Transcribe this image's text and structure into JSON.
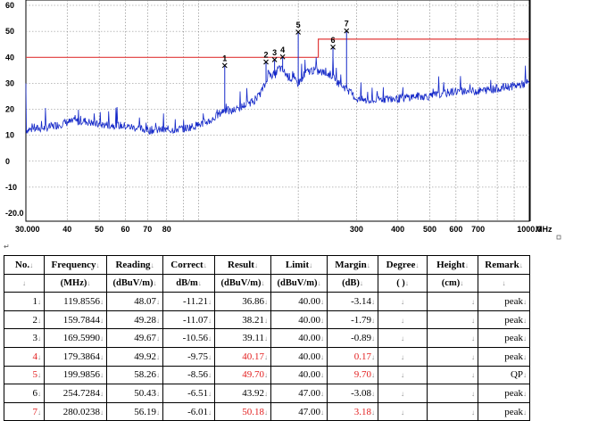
{
  "chart_data": {
    "type": "line",
    "title": "",
    "xlabel": "",
    "ylabel": "",
    "x_scale": "log",
    "xlim": [
      30,
      1000
    ],
    "ylim": [
      -20,
      60
    ],
    "grid": true,
    "y_ticks": [
      "60",
      "50",
      "40",
      "30",
      "20",
      "10",
      "0",
      "-10",
      "-20.0"
    ],
    "x_ticks": [
      {
        "v": 30,
        "label": "30.000"
      },
      {
        "v": 40,
        "label": "40"
      },
      {
        "v": 50,
        "label": "50"
      },
      {
        "v": 60,
        "label": "60"
      },
      {
        "v": 70,
        "label": "70"
      },
      {
        "v": 80,
        "label": "80"
      },
      {
        "v": 300,
        "label": "300"
      },
      {
        "v": 400,
        "label": "400"
      },
      {
        "v": 500,
        "label": "500"
      },
      {
        "v": 600,
        "label": "600"
      },
      {
        "v": 700,
        "label": "700"
      },
      {
        "v": 1000,
        "label": "1000.0"
      }
    ],
    "x_unit": "MHz",
    "limit_line": {
      "color": "#e03a3a",
      "points": [
        [
          30,
          40
        ],
        [
          230,
          40
        ],
        [
          230,
          47
        ],
        [
          1000,
          47
        ]
      ]
    },
    "spectrum": {
      "color": "#1428c8",
      "points": [
        [
          30,
          12
        ],
        [
          35,
          13
        ],
        [
          40,
          15
        ],
        [
          45,
          15.5
        ],
        [
          50,
          14
        ],
        [
          55,
          14
        ],
        [
          60,
          13.5
        ],
        [
          70,
          12
        ],
        [
          80,
          12
        ],
        [
          90,
          12.5
        ],
        [
          100,
          14
        ],
        [
          110,
          16
        ],
        [
          119.8556,
          20
        ],
        [
          125,
          19
        ],
        [
          140,
          22
        ],
        [
          150,
          24
        ],
        [
          159.7844,
          30
        ],
        [
          162,
          34
        ],
        [
          169.599,
          33
        ],
        [
          175,
          36
        ],
        [
          179.3864,
          35
        ],
        [
          185,
          33
        ],
        [
          199.9856,
          30
        ],
        [
          210,
          34
        ],
        [
          220,
          35
        ],
        [
          240,
          34
        ],
        [
          254.7284,
          33
        ],
        [
          265,
          30
        ],
        [
          280.0238,
          28
        ],
        [
          300,
          24
        ],
        [
          330,
          23
        ],
        [
          360,
          24
        ],
        [
          400,
          24
        ],
        [
          450,
          25
        ],
        [
          500,
          25
        ],
        [
          550,
          26
        ],
        [
          600,
          27
        ],
        [
          700,
          27
        ],
        [
          800,
          28
        ],
        [
          900,
          29
        ],
        [
          1000,
          30
        ]
      ]
    },
    "peaks": [
      {
        "id": "1",
        "x": 119.8556,
        "y": 36.86
      },
      {
        "id": "2",
        "x": 159.7844,
        "y": 38.21
      },
      {
        "id": "3",
        "x": 169.599,
        "y": 39.11
      },
      {
        "id": "4",
        "x": 179.3864,
        "y": 40.17
      },
      {
        "id": "5",
        "x": 199.9856,
        "y": 49.7
      },
      {
        "id": "6",
        "x": 254.7284,
        "y": 43.92
      },
      {
        "id": "7",
        "x": 280.0238,
        "y": 50.18
      }
    ]
  },
  "table": {
    "headers_1": [
      "No.",
      "Frequency",
      "Reading",
      "Correct",
      "Result",
      "Limit",
      "Margin",
      "Degree",
      "Height",
      "Remark"
    ],
    "headers_2": [
      "",
      "(MHz)",
      "(dBuV/m)",
      "dB/m",
      "(dBuV/m)",
      "(dBuV/m)",
      "(dB)",
      "(    )",
      "(cm)",
      ""
    ],
    "rows": [
      {
        "no": "1",
        "freq": "119.8556",
        "reading": "48.07",
        "correct": "-11.21",
        "result": "36.86",
        "limit": "40.00",
        "margin": "-3.14",
        "degree": "",
        "height": "",
        "remark": "peak",
        "highlight": false
      },
      {
        "no": "2",
        "freq": "159.7844",
        "reading": "49.28",
        "correct": "-11.07",
        "result": "38.21",
        "limit": "40.00",
        "margin": "-1.79",
        "degree": "",
        "height": "",
        "remark": "peak",
        "highlight": false
      },
      {
        "no": "3",
        "freq": "169.5990",
        "reading": "49.67",
        "correct": "-10.56",
        "result": "39.11",
        "limit": "40.00",
        "margin": "-0.89",
        "degree": "",
        "height": "",
        "remark": "peak",
        "highlight": false
      },
      {
        "no": "4",
        "freq": "179.3864",
        "reading": "49.92",
        "correct": "-9.75",
        "result": "40.17",
        "limit": "40.00",
        "margin": "0.17",
        "degree": "",
        "height": "",
        "remark": "peak",
        "highlight": true
      },
      {
        "no": "5",
        "freq": "199.9856",
        "reading": "58.26",
        "correct": "-8.56",
        "result": "49.70",
        "limit": "40.00",
        "margin": "9.70",
        "degree": "",
        "height": "",
        "remark": "QP",
        "highlight": true
      },
      {
        "no": "6",
        "freq": "254.7284",
        "reading": "50.43",
        "correct": "-6.51",
        "result": "43.92",
        "limit": "47.00",
        "margin": "-3.08",
        "degree": "",
        "height": "",
        "remark": "peak",
        "highlight": false
      },
      {
        "no": "7",
        "freq": "280.0238",
        "reading": "56.19",
        "correct": "-6.01",
        "result": "50.18",
        "limit": "47.00",
        "margin": "3.18",
        "degree": "",
        "height": "",
        "remark": "peak",
        "highlight": true
      }
    ]
  },
  "colors": {
    "highlight_text": "#e32020",
    "grid": "#7a7a7a"
  }
}
